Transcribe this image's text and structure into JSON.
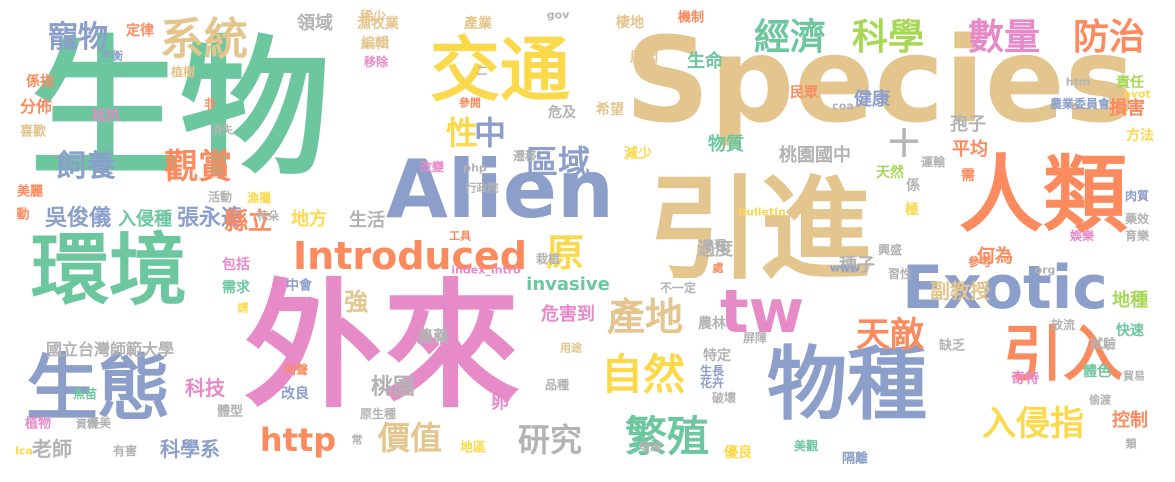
{
  "palette": {
    "green": "#6cc79f",
    "tan": "#e3c58d",
    "pink": "#e78ac8",
    "orange": "#fb8b5e",
    "blue": "#8c9fca",
    "yellow": "#fcd94a",
    "lime": "#a6d856",
    "grey": "#b3b3b3"
  },
  "words": [
    {
      "text": "生物",
      "color": "#6cc79f"
    },
    {
      "text": "Species",
      "color": "#e3c58d"
    },
    {
      "text": "外來",
      "color": "#e78ac8"
    },
    {
      "text": "引進",
      "color": "#e3c58d"
    },
    {
      "text": "人類",
      "color": "#fb8b5e"
    },
    {
      "text": "交通",
      "color": "#fcd94a"
    },
    {
      "text": "Alien",
      "color": "#8c9fca"
    },
    {
      "text": "環境",
      "color": "#6cc79f"
    },
    {
      "text": "物種",
      "color": "#8c9fca"
    },
    {
      "text": "生態",
      "color": "#8c9fca"
    },
    {
      "text": "Exotic",
      "color": "#8c9fca"
    },
    {
      "text": "引入",
      "color": "#fb8b5e"
    },
    {
      "text": "tw",
      "color": "#e78ac8"
    },
    {
      "text": "Introduced",
      "color": "#fb8b5e"
    },
    {
      "text": "系統",
      "color": "#e3c58d"
    },
    {
      "text": "經濟",
      "color": "#6cc79f"
    },
    {
      "text": "科學",
      "color": "#a6d856"
    },
    {
      "text": "數量",
      "color": "#e78ac8"
    },
    {
      "text": "防治",
      "color": "#fb8b5e"
    },
    {
      "text": "寵物",
      "color": "#8c9fca"
    },
    {
      "text": "自然",
      "color": "#fcd94a"
    },
    {
      "text": "繁殖",
      "color": "#6cc79f"
    },
    {
      "text": "入侵指",
      "color": "#fcd94a"
    },
    {
      "text": "產地",
      "color": "#e3c58d"
    },
    {
      "text": "區域",
      "color": "#8c9fca"
    },
    {
      "text": "觀賞",
      "color": "#fb8b5e"
    },
    {
      "text": "飼養",
      "color": "#8c9fca"
    },
    {
      "text": "天敵",
      "color": "#fb8b5e"
    },
    {
      "text": "價值",
      "color": "#e3c58d"
    },
    {
      "text": "研究",
      "color": "#b3b3b3"
    },
    {
      "text": "http",
      "color": "#fb8b5e"
    },
    {
      "text": "原",
      "color": "#fcd94a"
    },
    {
      "text": "中",
      "color": "#8c9fca"
    },
    {
      "text": "性",
      "color": "#fcd94a"
    },
    {
      "text": "十",
      "color": "#b3b3b3"
    },
    {
      "text": "吳俊儀",
      "color": "#8c9fca"
    },
    {
      "text": "張永達",
      "color": "#8c9fca"
    },
    {
      "text": "縣立",
      "color": "#fb8b5e"
    },
    {
      "text": "國立台灣師範大學",
      "color": "#b3b3b3"
    },
    {
      "text": "invasive",
      "color": "#6cc79f"
    },
    {
      "text": "桃園國中",
      "color": "#b3b3b3"
    },
    {
      "text": "桃園",
      "color": "#b3b3b3"
    },
    {
      "text": "強",
      "color": "#e3c58d"
    },
    {
      "text": "科技",
      "color": "#e78ac8"
    },
    {
      "text": "老師",
      "color": "#b3b3b3"
    },
    {
      "text": "科學系",
      "color": "#8c9fca"
    },
    {
      "text": "副教授",
      "color": "#e3c58d"
    },
    {
      "text": "地方",
      "color": "#fcd94a"
    },
    {
      "text": "生活",
      "color": "#b3b3b3"
    },
    {
      "text": "入侵種",
      "color": "#6cc79f"
    },
    {
      "text": "危害到",
      "color": "#e78ac8"
    },
    {
      "text": "農藥",
      "color": "#b3b3b3"
    },
    {
      "text": "生命",
      "color": "#6cc79f"
    },
    {
      "text": "物質",
      "color": "#6cc79f"
    },
    {
      "text": "健康",
      "color": "#8c9fca"
    },
    {
      "text": "孢子",
      "color": "#b3b3b3"
    },
    {
      "text": "平均",
      "color": "#fb8b5e"
    },
    {
      "text": "種子",
      "color": "#b3b3b3"
    },
    {
      "text": "過度",
      "color": "#b3b3b3"
    },
    {
      "text": "何為",
      "color": "#fb8b5e"
    },
    {
      "text": "地種",
      "color": "#a6d856"
    },
    {
      "text": "控制",
      "color": "#fb8b5e"
    },
    {
      "text": "損害",
      "color": "#fb8b5e"
    },
    {
      "text": "責任",
      "color": "#a6d856"
    },
    {
      "text": "方法",
      "color": "#fcd94a"
    },
    {
      "text": "領域",
      "color": "#b3b3b3"
    },
    {
      "text": "漁牧業",
      "color": "#e3c58d"
    },
    {
      "text": "產業",
      "color": "#e3c58d"
    },
    {
      "text": "定律",
      "color": "#fb8b5e"
    },
    {
      "text": "稀少",
      "color": "#e3c58d"
    },
    {
      "text": "編輯",
      "color": "#e3c58d"
    },
    {
      "text": "棲地",
      "color": "#e3c58d"
    },
    {
      "text": "機制",
      "color": "#fb8b5e"
    },
    {
      "text": "分佈",
      "color": "#fb8b5e"
    },
    {
      "text": "係指",
      "color": "#fb8b5e"
    },
    {
      "text": "原因",
      "color": "#e3c58d"
    },
    {
      "text": "希望",
      "color": "#e3c58d"
    },
    {
      "text": "危及",
      "color": "#b3b3b3"
    },
    {
      "text": "減少",
      "color": "#fcd94a"
    },
    {
      "text": "遷移",
      "color": "#b3b3b3"
    },
    {
      "text": "改變",
      "color": "#e78ac8"
    },
    {
      "text": "民眾",
      "color": "#fb8b5e"
    },
    {
      "text": "天然",
      "color": "#a6d856"
    },
    {
      "text": "係",
      "color": "#b3b3b3"
    },
    {
      "text": "極",
      "color": "#fcd94a"
    },
    {
      "text": "需",
      "color": "#fb8b5e"
    },
    {
      "text": "抵抗",
      "color": "#e78ac8"
    },
    {
      "text": "喜歡",
      "color": "#e3c58d"
    },
    {
      "text": "美麗",
      "color": "#fb8b5e"
    },
    {
      "text": "活動",
      "color": "#b3b3b3"
    },
    {
      "text": "漁獵",
      "color": "#fcd94a"
    },
    {
      "text": "需求",
      "color": "#6cc79f"
    },
    {
      "text": "包括",
      "color": "#e78ac8"
    },
    {
      "text": "中會",
      "color": "#8c9fca"
    },
    {
      "text": "改良",
      "color": "#8c9fca"
    },
    {
      "text": "原生種",
      "color": "#b3b3b3"
    },
    {
      "text": "體型",
      "color": "#b3b3b3"
    },
    {
      "text": "地區",
      "color": "#fcd94a"
    },
    {
      "text": "栽植",
      "color": "#b3b3b3"
    },
    {
      "text": "農林",
      "color": "#b3b3b3"
    },
    {
      "text": "特定",
      "color": "#b3b3b3"
    },
    {
      "text": "生長",
      "color": "#8c9fca"
    },
    {
      "text": "花卉",
      "color": "#8c9fca"
    },
    {
      "text": "破壞",
      "color": "#b3b3b3"
    },
    {
      "text": "卵",
      "color": "#e78ac8"
    },
    {
      "text": "品種",
      "color": "#b3b3b3"
    },
    {
      "text": "優良",
      "color": "#fcd94a"
    },
    {
      "text": "不一定",
      "color": "#b3b3b3"
    },
    {
      "text": "習性",
      "color": "#b3b3b3"
    },
    {
      "text": "興盛",
      "color": "#b3b3b3"
    },
    {
      "text": "運輸",
      "color": "#b3b3b3"
    },
    {
      "text": "參考",
      "color": "#fb8b5e"
    },
    {
      "text": "缺乏",
      "color": "#b3b3b3"
    },
    {
      "text": "放流",
      "color": "#b3b3b3"
    },
    {
      "text": "快速",
      "color": "#6cc79f"
    },
    {
      "text": "試驗",
      "color": "#b3b3b3"
    },
    {
      "text": "奇特",
      "color": "#e78ac8"
    },
    {
      "text": "體色",
      "color": "#6cc79f"
    },
    {
      "text": "藥效",
      "color": "#b3b3b3"
    },
    {
      "text": "肉質",
      "color": "#8c9fca"
    },
    {
      "text": "育樂",
      "color": "#b3b3b3"
    },
    {
      "text": "娛樂",
      "color": "#e78ac8"
    },
    {
      "text": "貿易",
      "color": "#b3b3b3"
    },
    {
      "text": "偷渡",
      "color": "#b3b3b3"
    },
    {
      "text": "隔離",
      "color": "#8c9fca"
    },
    {
      "text": "類",
      "color": "#b3b3b3"
    },
    {
      "text": "屏障",
      "color": "#b3b3b3"
    },
    {
      "text": "美觀",
      "color": "#6cc79f"
    },
    {
      "text": "農業委員會",
      "color": "#8c9fca"
    },
    {
      "text": "發達",
      "color": "#b3b3b3"
    },
    {
      "text": "用途",
      "color": "#e3c58d"
    },
    {
      "text": "工具",
      "color": "#fb8b5e"
    },
    {
      "text": "地理",
      "color": "#b3b3b3"
    },
    {
      "text": "處",
      "color": "#fb8b5e"
    },
    {
      "text": "行政院",
      "color": "#b3b3b3"
    },
    {
      "text": "參閱",
      "color": "#fb8b5e"
    },
    {
      "text": "移除",
      "color": "#e78ac8"
    },
    {
      "text": "二",
      "color": "#b3b3b3"
    },
    {
      "text": "植樹",
      "color": "#e3c58d"
    },
    {
      "text": "平衡",
      "color": "#8c9fca"
    },
    {
      "text": "非",
      "color": "#fb8b5e"
    },
    {
      "text": "消失",
      "color": "#b3b3b3"
    },
    {
      "text": "動",
      "color": "#fb8b5e"
    },
    {
      "text": "花朵",
      "color": "#b3b3b3"
    },
    {
      "text": "請",
      "color": "#fcd94a"
    },
    {
      "text": "魚苗",
      "color": "#6cc79f"
    },
    {
      "text": "資料",
      "color": "#b3b3b3"
    },
    {
      "text": "植物",
      "color": "#e78ac8"
    },
    {
      "text": "優美",
      "color": "#b3b3b3"
    },
    {
      "text": "有害",
      "color": "#b3b3b3"
    },
    {
      "text": "叫聲",
      "color": "#fb8b5e"
    },
    {
      "text": "常",
      "color": "#b3b3b3"
    },
    {
      "text": "gov",
      "color": "#b3b3b3"
    },
    {
      "text": "php",
      "color": "#b3b3b3"
    },
    {
      "text": "coa",
      "color": "#b3b3b3"
    },
    {
      "text": "htm",
      "color": "#b3b3b3"
    },
    {
      "text": "avot",
      "color": "#fcd94a"
    },
    {
      "text": "bulletin",
      "color": "#fcd94a"
    },
    {
      "text": "index_intro",
      "color": "#e78ac8"
    },
    {
      "text": "www",
      "color": "#8c9fca"
    },
    {
      "text": "org",
      "color": "#b3b3b3"
    },
    {
      "text": "lca",
      "color": "#fcd94a"
    }
  ]
}
